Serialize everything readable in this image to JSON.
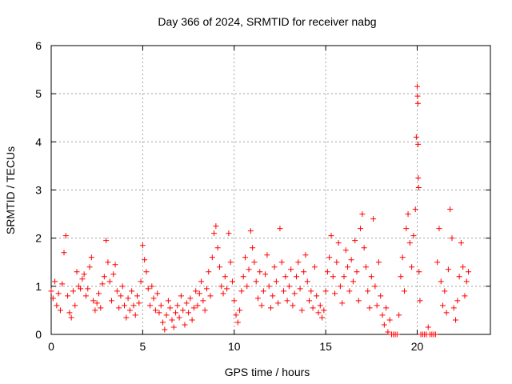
{
  "chart_data": {
    "type": "scatter",
    "title": "Day 366 of 2024, SRMTID for receiver nabg",
    "xlabel": "GPS time / hours",
    "ylabel": "SRMTID / TECUs",
    "xlim": [
      0,
      24
    ],
    "ylim": [
      0,
      6
    ],
    "x_ticks": [
      0,
      5,
      10,
      15,
      20
    ],
    "y_ticks": [
      0,
      1,
      2,
      3,
      4,
      5,
      6
    ],
    "grid": true,
    "marker": "plus",
    "color": "#ff0000",
    "series": [
      {
        "name": "SRMTID",
        "points": [
          [
            0.0,
            0.9
          ],
          [
            0.1,
            0.75
          ],
          [
            0.2,
            1.1
          ],
          [
            0.3,
            0.6
          ],
          [
            0.4,
            0.85
          ],
          [
            0.5,
            0.5
          ],
          [
            0.6,
            1.05
          ],
          [
            0.7,
            1.7
          ],
          [
            0.8,
            2.05
          ],
          [
            0.9,
            0.8
          ],
          [
            1.0,
            0.45
          ],
          [
            1.1,
            0.35
          ],
          [
            1.2,
            0.9
          ],
          [
            1.3,
            0.6
          ],
          [
            1.4,
            1.3
          ],
          [
            1.5,
            1.0
          ],
          [
            1.6,
            0.95
          ],
          [
            1.7,
            1.15
          ],
          [
            1.8,
            1.25
          ],
          [
            1.9,
            0.8
          ],
          [
            2.0,
            0.95
          ],
          [
            2.1,
            1.4
          ],
          [
            2.2,
            1.6
          ],
          [
            2.3,
            0.7
          ],
          [
            2.4,
            0.5
          ],
          [
            2.5,
            0.65
          ],
          [
            2.6,
            0.85
          ],
          [
            2.7,
            0.55
          ],
          [
            2.8,
            1.05
          ],
          [
            2.9,
            1.2
          ],
          [
            3.0,
            1.95
          ],
          [
            3.1,
            1.5
          ],
          [
            3.2,
            1.1
          ],
          [
            3.3,
            0.7
          ],
          [
            3.4,
            1.25
          ],
          [
            3.5,
            1.45
          ],
          [
            3.6,
            0.9
          ],
          [
            3.7,
            0.55
          ],
          [
            3.8,
            0.8
          ],
          [
            3.9,
            1.0
          ],
          [
            4.0,
            0.6
          ],
          [
            4.1,
            0.35
          ],
          [
            4.2,
            0.75
          ],
          [
            4.3,
            0.5
          ],
          [
            4.4,
            0.9
          ],
          [
            4.5,
            0.6
          ],
          [
            4.6,
            0.4
          ],
          [
            4.7,
            0.8
          ],
          [
            4.8,
            0.65
          ],
          [
            4.9,
            1.1
          ],
          [
            5.0,
            1.85
          ],
          [
            5.1,
            1.55
          ],
          [
            5.2,
            1.3
          ],
          [
            5.3,
            0.95
          ],
          [
            5.4,
            0.6
          ],
          [
            5.5,
            1.0
          ],
          [
            5.6,
            0.75
          ],
          [
            5.7,
            0.5
          ],
          [
            5.8,
            0.85
          ],
          [
            5.9,
            0.45
          ],
          [
            6.0,
            0.6
          ],
          [
            6.1,
            0.25
          ],
          [
            6.2,
            0.1
          ],
          [
            6.3,
            0.4
          ],
          [
            6.4,
            0.7
          ],
          [
            6.5,
            0.55
          ],
          [
            6.6,
            0.3
          ],
          [
            6.7,
            0.15
          ],
          [
            6.8,
            0.45
          ],
          [
            6.9,
            0.6
          ],
          [
            7.0,
            0.35
          ],
          [
            7.1,
            0.8
          ],
          [
            7.2,
            0.5
          ],
          [
            7.3,
            0.2
          ],
          [
            7.4,
            0.65
          ],
          [
            7.5,
            0.45
          ],
          [
            7.6,
            0.75
          ],
          [
            7.7,
            0.3
          ],
          [
            7.8,
            0.55
          ],
          [
            7.9,
            0.9
          ],
          [
            8.0,
            0.6
          ],
          [
            8.1,
            0.85
          ],
          [
            8.2,
            1.1
          ],
          [
            8.3,
            0.7
          ],
          [
            8.4,
            0.5
          ],
          [
            8.5,
            0.95
          ],
          [
            8.6,
            1.3
          ],
          [
            8.7,
            0.8
          ],
          [
            8.8,
            1.6
          ],
          [
            8.9,
            2.1
          ],
          [
            9.0,
            2.25
          ],
          [
            9.1,
            1.8
          ],
          [
            9.2,
            1.4
          ],
          [
            9.3,
            1.0
          ],
          [
            9.4,
            0.85
          ],
          [
            9.5,
            1.2
          ],
          [
            9.6,
            0.95
          ],
          [
            9.7,
            2.1
          ],
          [
            9.8,
            1.5
          ],
          [
            9.9,
            1.1
          ],
          [
            10.0,
            0.7
          ],
          [
            10.1,
            0.4
          ],
          [
            10.2,
            0.25
          ],
          [
            10.3,
            0.5
          ],
          [
            10.4,
            0.9
          ],
          [
            10.5,
            1.2
          ],
          [
            10.6,
            1.6
          ],
          [
            10.7,
            1.0
          ],
          [
            10.8,
            1.35
          ],
          [
            10.9,
            2.15
          ],
          [
            11.0,
            1.8
          ],
          [
            11.1,
            1.5
          ],
          [
            11.2,
            1.1
          ],
          [
            11.3,
            0.75
          ],
          [
            11.4,
            1.3
          ],
          [
            11.5,
            0.6
          ],
          [
            11.6,
            0.9
          ],
          [
            11.7,
            1.25
          ],
          [
            11.8,
            1.65
          ],
          [
            11.9,
            1.0
          ],
          [
            12.0,
            0.55
          ],
          [
            12.1,
            0.8
          ],
          [
            12.2,
            1.4
          ],
          [
            12.3,
            1.1
          ],
          [
            12.4,
            0.65
          ],
          [
            12.5,
            2.2
          ],
          [
            12.6,
            1.5
          ],
          [
            12.7,
            0.9
          ],
          [
            12.8,
            1.2
          ],
          [
            12.9,
            0.7
          ],
          [
            13.0,
            1.0
          ],
          [
            13.1,
            1.35
          ],
          [
            13.2,
            0.6
          ],
          [
            13.3,
            0.85
          ],
          [
            13.4,
            1.2
          ],
          [
            13.5,
            1.5
          ],
          [
            13.6,
            0.95
          ],
          [
            13.7,
            0.5
          ],
          [
            13.8,
            1.3
          ],
          [
            13.9,
            1.65
          ],
          [
            14.0,
            1.1
          ],
          [
            14.1,
            0.7
          ],
          [
            14.2,
            0.9
          ],
          [
            14.3,
            0.55
          ],
          [
            14.4,
            1.4
          ],
          [
            14.5,
            0.8
          ],
          [
            14.6,
            0.45
          ],
          [
            14.7,
            0.6
          ],
          [
            14.8,
            0.35
          ],
          [
            14.9,
            0.5
          ],
          [
            15.0,
            0.9
          ],
          [
            15.1,
            1.3
          ],
          [
            15.2,
            1.6
          ],
          [
            15.3,
            2.05
          ],
          [
            15.4,
            1.2
          ],
          [
            15.5,
            0.85
          ],
          [
            15.6,
            1.5
          ],
          [
            15.7,
            1.9
          ],
          [
            15.8,
            1.0
          ],
          [
            15.9,
            0.65
          ],
          [
            16.0,
            1.2
          ],
          [
            16.1,
            1.75
          ],
          [
            16.2,
            1.4
          ],
          [
            16.3,
            0.9
          ],
          [
            16.4,
            1.55
          ],
          [
            16.5,
            1.1
          ],
          [
            16.6,
            1.95
          ],
          [
            16.7,
            1.3
          ],
          [
            16.8,
            0.7
          ],
          [
            16.9,
            2.2
          ],
          [
            17.0,
            2.5
          ],
          [
            17.1,
            1.8
          ],
          [
            17.2,
            1.4
          ],
          [
            17.3,
            0.9
          ],
          [
            17.4,
            0.55
          ],
          [
            17.5,
            1.2
          ],
          [
            17.6,
            2.4
          ],
          [
            17.7,
            1.0
          ],
          [
            17.8,
            0.6
          ],
          [
            17.9,
            1.5
          ],
          [
            18.0,
            0.8
          ],
          [
            18.1,
            0.4
          ],
          [
            18.2,
            0.2
          ],
          [
            18.3,
            0.55
          ],
          [
            18.4,
            0.05
          ],
          [
            18.5,
            0.3
          ],
          [
            18.6,
            0.0
          ],
          [
            18.7,
            0.0
          ],
          [
            18.8,
            0.0
          ],
          [
            18.9,
            0.0
          ],
          [
            19.0,
            0.4
          ],
          [
            19.1,
            1.2
          ],
          [
            19.2,
            1.6
          ],
          [
            19.3,
            0.9
          ],
          [
            19.4,
            2.2
          ],
          [
            19.5,
            2.5
          ],
          [
            19.6,
            1.9
          ],
          [
            19.7,
            1.4
          ],
          [
            19.8,
            2.05
          ],
          [
            19.9,
            2.6
          ],
          [
            19.95,
            4.1
          ],
          [
            20.0,
            5.15
          ],
          [
            20.02,
            4.95
          ],
          [
            20.04,
            4.8
          ],
          [
            20.05,
            3.95
          ],
          [
            20.06,
            3.25
          ],
          [
            20.08,
            3.05
          ],
          [
            20.1,
            1.3
          ],
          [
            20.15,
            0.7
          ],
          [
            20.2,
            0.0
          ],
          [
            20.3,
            0.0
          ],
          [
            20.4,
            0.0
          ],
          [
            20.5,
            0.0
          ],
          [
            20.6,
            0.15
          ],
          [
            20.7,
            0.0
          ],
          [
            20.8,
            0.0
          ],
          [
            20.9,
            0.0
          ],
          [
            21.0,
            0.0
          ],
          [
            21.1,
            1.5
          ],
          [
            21.2,
            2.2
          ],
          [
            21.3,
            1.1
          ],
          [
            21.4,
            0.6
          ],
          [
            21.5,
            0.9
          ],
          [
            21.6,
            0.45
          ],
          [
            21.7,
            1.35
          ],
          [
            21.8,
            2.6
          ],
          [
            21.9,
            2.0
          ],
          [
            22.0,
            0.55
          ],
          [
            22.1,
            0.3
          ],
          [
            22.2,
            0.7
          ],
          [
            22.3,
            1.2
          ],
          [
            22.4,
            1.9
          ],
          [
            22.5,
            1.4
          ],
          [
            22.6,
            0.8
          ],
          [
            22.7,
            1.1
          ],
          [
            22.8,
            1.3
          ]
        ]
      }
    ]
  }
}
